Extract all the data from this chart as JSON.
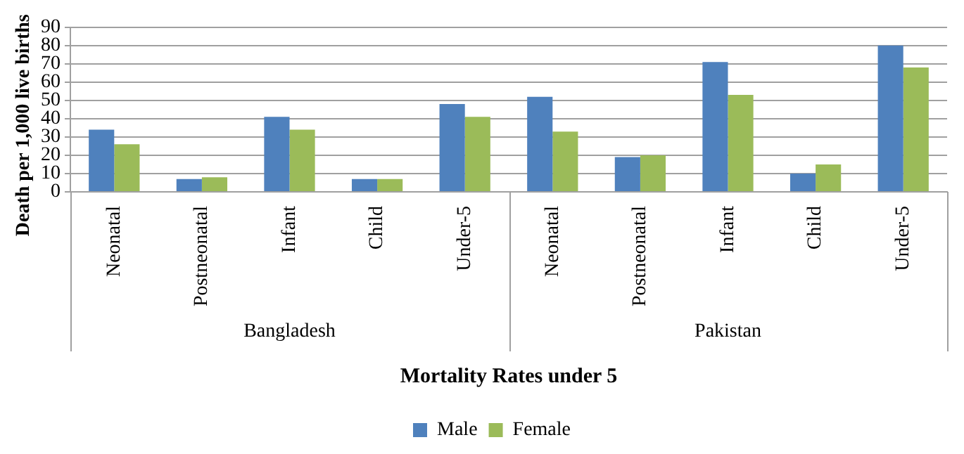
{
  "chart_data": {
    "type": "bar",
    "categories": [
      "Neonatal",
      "Postneonatal",
      "Infant",
      "Child",
      "Under-5",
      "Neonatal",
      "Postneonatal",
      "Infant",
      "Child",
      "Under-5"
    ],
    "series": [
      {
        "name": "Male",
        "color": "#4f81bd",
        "values": [
          34,
          7,
          41,
          7,
          48,
          52,
          19,
          71,
          10,
          80
        ]
      },
      {
        "name": "Female",
        "color": "#9bbb59",
        "values": [
          26,
          8,
          34,
          7,
          41,
          33,
          20,
          53,
          15,
          68
        ]
      }
    ],
    "xlabel": "Mortality Rates under 5",
    "ylabel": "Death per 1,000 live births",
    "annotations": [
      "Bangladesh",
      "Pakistan"
    ],
    "ylim": [
      0,
      90
    ],
    "yticks": [
      0,
      10,
      20,
      30,
      40,
      50,
      60,
      70,
      80,
      90
    ],
    "grid": "y",
    "legend": "bottom"
  }
}
